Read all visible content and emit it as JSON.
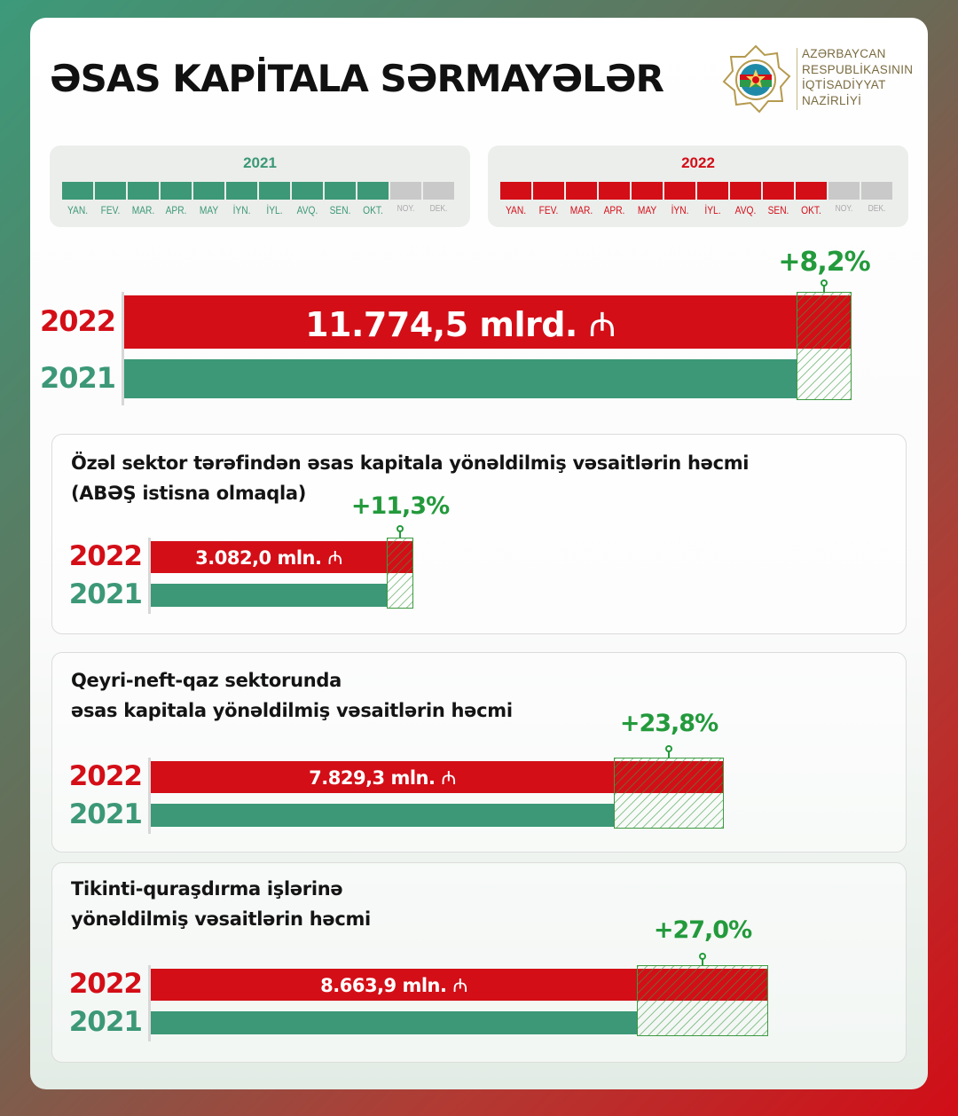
{
  "title": "ƏSAS KAPİTALA SƏRMAYƏLƏR",
  "ministry": [
    "AZƏRBAYCAN",
    "RESPUBLİKASININ",
    "İQTİSADİYYAT",
    "NAZİRLİYİ"
  ],
  "timeline": {
    "months": [
      "YAN.",
      "FEV.",
      "MAR.",
      "APR.",
      "MAY",
      "İYN.",
      "İYL.",
      "AVQ.",
      "SEN.",
      "OKT.",
      "NOY.",
      "DEK."
    ],
    "active_months": 10,
    "year_2021": "2021",
    "year_2022": "2022"
  },
  "colors": {
    "red": "#d30e17",
    "green": "#3c9877",
    "growth": "#239a3c",
    "inactive": "#c9c9c9"
  },
  "chart_data": [
    {
      "type": "bar",
      "title": "",
      "categories": [
        "2022",
        "2021"
      ],
      "value_label": "11.774,5 mlrd.",
      "currency_symbol": "₼",
      "growth": "+8,2%",
      "growth_pct": 8.2
    },
    {
      "type": "bar",
      "title": [
        "Özəl sektor tərəfindən əsas kapitala yönəldilmiş vəsaitlərin həcmi",
        "(ABƏŞ istisna olmaqla)"
      ],
      "categories": [
        "2022",
        "2021"
      ],
      "value_label": "3.082,0 mln.",
      "value_2022": 3082.0,
      "currency_symbol": "₼",
      "growth": "+11,3%",
      "growth_pct": 11.3
    },
    {
      "type": "bar",
      "title": [
        "Qeyri-neft-qaz sektorunda",
        "əsas kapitala yönəldilmiş vəsaitlərin həcmi"
      ],
      "categories": [
        "2022",
        "2021"
      ],
      "value_label": "7.829,3 mln.",
      "value_2022": 7829.3,
      "currency_symbol": "₼",
      "growth": "+23,8%",
      "growth_pct": 23.8
    },
    {
      "type": "bar",
      "title": [
        "Tikinti-quraşdırma işlərinə",
        "yönəldilmiş vəsaitlərin həcmi"
      ],
      "categories": [
        "2022",
        "2021"
      ],
      "value_label": "8.663,9 mln.",
      "value_2022": 8663.9,
      "currency_symbol": "₼",
      "growth": "+27,0%",
      "growth_pct": 27.0
    }
  ]
}
